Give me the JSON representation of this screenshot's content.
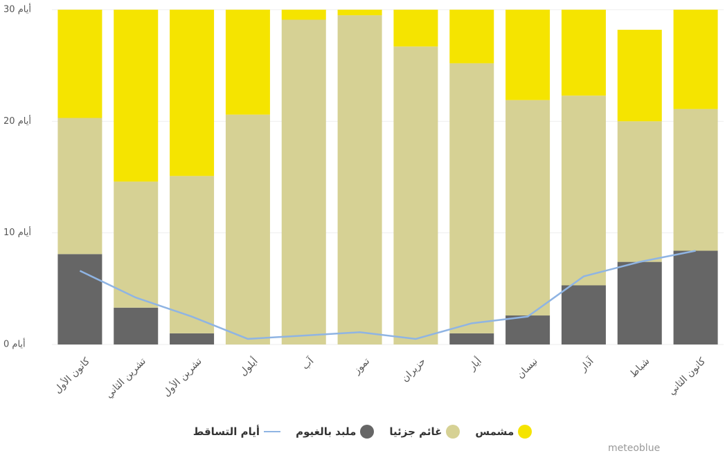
{
  "chart_data": {
    "type": "stacked_bar",
    "categories": [
      "كانون الأول",
      "تشرين الثاني",
      "تشرين الأول",
      "أيلول",
      "آب",
      "تموز",
      "حزيران",
      "أيار",
      "نيسان",
      "آذار",
      "شباط",
      "كانون الثاني"
    ],
    "series": [
      {
        "name": "ملبد بالغيوم",
        "color": "#666666",
        "values": [
          8.1,
          3.3,
          1.0,
          0,
          0,
          0,
          0,
          1.0,
          2.6,
          5.3,
          7.4,
          8.4
        ]
      },
      {
        "name": "غائم جزئيا",
        "color": "#d6d194",
        "values": [
          12.2,
          11.3,
          14.1,
          20.6,
          29.1,
          29.5,
          26.7,
          24.2,
          19.3,
          17.0,
          12.6,
          12.7
        ]
      },
      {
        "name": "مشمس",
        "color": "#f5e400",
        "values": [
          9.7,
          15.4,
          14.9,
          9.4,
          0.9,
          0.5,
          3.3,
          4.8,
          8.1,
          7.7,
          8.2,
          8.9
        ]
      },
      {
        "name": "أيام التساقط",
        "color": "#8fb4e3",
        "type": "line",
        "values": [
          6.6,
          4.2,
          2.5,
          0.5,
          0.8,
          1.1,
          0.5,
          1.9,
          2.5,
          6.1,
          7.4,
          8.4
        ]
      }
    ],
    "ylim": [
      0,
      30
    ],
    "yticks": [
      {
        "value": 0,
        "label": "0 أيام"
      },
      {
        "value": 10,
        "label": "10 أيام"
      },
      {
        "value": 20,
        "label": "20 أيام"
      },
      {
        "value": 30,
        "label": "30 أيام"
      }
    ],
    "grid": true,
    "legend": "bottom",
    "credit": "meteoblue"
  }
}
